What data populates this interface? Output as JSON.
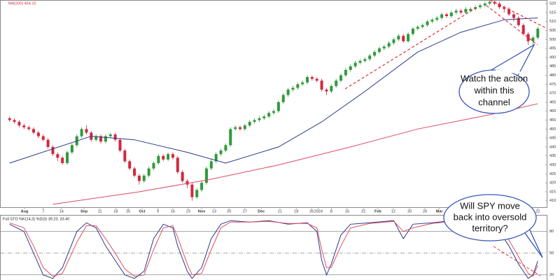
{
  "chart_data": [
    {
      "type": "candlestick",
      "overlay_label": "MA(200) 464.10",
      "x": [
        0,
        1,
        2,
        3,
        4,
        5,
        6,
        7,
        8,
        9,
        10,
        11,
        12,
        13,
        14,
        15,
        16,
        17,
        18,
        19,
        20,
        21,
        22,
        23,
        24,
        25,
        26,
        27,
        28,
        29,
        30,
        31,
        32,
        33,
        34,
        35,
        36,
        37,
        38,
        39,
        40,
        41,
        42,
        43,
        44,
        45,
        46,
        47,
        48,
        49,
        50,
        51,
        52,
        53,
        54,
        55,
        56,
        57,
        58,
        59,
        60,
        61,
        62,
        63,
        64,
        65,
        66,
        67,
        68,
        69,
        70,
        71,
        72,
        73,
        74,
        75,
        76,
        77,
        78,
        79,
        80,
        81,
        82,
        83,
        84,
        85,
        86,
        87,
        88,
        89,
        90,
        91,
        92,
        93,
        94,
        95,
        96,
        97,
        98,
        99,
        100,
        101,
        102,
        103,
        104,
        105,
        106,
        107,
        108,
        109,
        110
      ],
      "open": [
        456,
        455,
        454,
        452,
        451,
        450,
        448,
        446,
        444,
        440,
        436,
        434,
        431,
        437,
        441,
        446,
        450,
        448,
        444,
        446,
        443,
        446,
        447,
        444,
        438,
        432,
        428,
        424,
        421,
        424,
        428,
        431,
        435,
        433,
        436,
        434,
        426,
        421,
        419,
        412,
        416,
        420,
        428,
        432,
        436,
        438,
        441,
        450,
        451,
        450,
        452,
        454,
        455,
        456,
        457,
        459,
        460,
        465,
        469,
        472,
        473,
        475,
        476,
        479,
        478,
        477,
        472,
        471,
        474,
        477,
        480,
        483,
        485,
        487,
        488,
        489,
        491,
        493,
        495,
        496,
        498,
        500,
        502,
        499,
        503,
        506,
        507,
        508,
        510,
        511,
        512,
        514,
        513,
        515,
        516,
        515,
        516,
        517,
        518,
        519,
        520,
        521,
        520,
        518,
        517,
        514,
        512,
        508,
        503,
        499,
        501
      ],
      "high": [
        457,
        456,
        455,
        453,
        452,
        451,
        449,
        447,
        445,
        441,
        437,
        435,
        438,
        442,
        447,
        451,
        452,
        449,
        447,
        447,
        447,
        448,
        448,
        445,
        439,
        433,
        429,
        425,
        425,
        429,
        432,
        436,
        436,
        437,
        437,
        435,
        427,
        422,
        420,
        417,
        421,
        429,
        433,
        437,
        439,
        442,
        451,
        452,
        452,
        453,
        455,
        456,
        457,
        458,
        460,
        461,
        466,
        470,
        473,
        474,
        476,
        477,
        480,
        480,
        479,
        478,
        473,
        475,
        478,
        481,
        484,
        486,
        488,
        489,
        490,
        492,
        494,
        496,
        497,
        499,
        501,
        503,
        503,
        504,
        507,
        508,
        509,
        511,
        512,
        513,
        515,
        515,
        516,
        517,
        517,
        518,
        518,
        519,
        520,
        521,
        522,
        522,
        521,
        519,
        518,
        515,
        513,
        509,
        504,
        502,
        507
      ],
      "low": [
        454,
        453,
        451,
        450,
        449,
        447,
        445,
        443,
        439,
        435,
        432,
        430,
        430,
        436,
        440,
        445,
        447,
        443,
        443,
        442,
        442,
        445,
        443,
        437,
        431,
        427,
        423,
        419,
        420,
        423,
        427,
        430,
        432,
        432,
        433,
        425,
        420,
        417,
        410,
        411,
        415,
        419,
        427,
        431,
        435,
        437,
        440,
        449,
        449,
        449,
        451,
        453,
        454,
        455,
        456,
        458,
        459,
        464,
        468,
        471,
        472,
        474,
        475,
        477,
        476,
        471,
        469,
        470,
        473,
        476,
        479,
        482,
        484,
        486,
        487,
        488,
        490,
        492,
        494,
        495,
        497,
        499,
        498,
        498,
        502,
        505,
        506,
        507,
        509,
        510,
        511,
        512,
        512,
        514,
        514,
        514,
        515,
        516,
        517,
        518,
        519,
        519,
        517,
        515,
        513,
        510,
        507,
        502,
        497,
        497,
        500
      ],
      "close": [
        455,
        454,
        452,
        451,
        450,
        448,
        446,
        444,
        440,
        436,
        434,
        431,
        437,
        441,
        446,
        450,
        448,
        444,
        446,
        443,
        446,
        447,
        444,
        438,
        432,
        428,
        424,
        421,
        424,
        428,
        431,
        435,
        433,
        436,
        434,
        426,
        421,
        419,
        412,
        416,
        420,
        428,
        432,
        436,
        438,
        441,
        450,
        451,
        450,
        452,
        454,
        455,
        456,
        457,
        459,
        460,
        465,
        469,
        472,
        473,
        475,
        476,
        479,
        478,
        477,
        472,
        471,
        474,
        477,
        480,
        483,
        485,
        487,
        488,
        489,
        491,
        493,
        495,
        496,
        498,
        500,
        502,
        499,
        503,
        506,
        507,
        508,
        510,
        511,
        512,
        514,
        513,
        515,
        516,
        515,
        517,
        517,
        518,
        519,
        520,
        521,
        520,
        518,
        517,
        514,
        512,
        508,
        503,
        499,
        501,
        506
      ],
      "up_color": "#2f9a3c",
      "down_color": "#d2283e",
      "overlays": [
        {
          "color": "#2b3a8c",
          "x": [
            0,
            17,
            26,
            37,
            45,
            56,
            65,
            74,
            85,
            94,
            103,
            110
          ],
          "values": [
            431,
            446,
            444,
            437,
            431,
            440,
            454,
            471,
            493,
            504,
            511,
            512
          ]
        },
        {
          "color": "#dc4a64",
          "x": [
            9,
            27,
            42,
            56,
            71,
            85,
            100,
            110
          ],
          "values": [
            408,
            415,
            422,
            430,
            440,
            450,
            458,
            464.1
          ]
        }
      ],
      "xlim": [
        -2,
        112
      ],
      "ylim": [
        406,
        522
      ],
      "yticks": [
        410,
        415,
        420,
        425,
        430,
        435,
        440,
        445,
        450,
        455,
        460,
        465,
        470,
        475,
        480,
        485,
        490,
        495,
        500,
        505,
        510,
        515,
        520
      ],
      "xticks": [
        {
          "value": 3.1,
          "label": "Aug"
        },
        {
          "value": 7.0,
          "label": "7"
        },
        {
          "value": 10.8,
          "label": "14"
        },
        {
          "value": 15.5,
          "label": "Sep"
        },
        {
          "value": 18.8,
          "label": "11"
        },
        {
          "value": 22.1,
          "label": "18"
        },
        {
          "value": 24.7,
          "label": "25"
        },
        {
          "value": 27.6,
          "label": "Oct"
        },
        {
          "value": 30.9,
          "label": "9"
        },
        {
          "value": 34.0,
          "label": "16"
        },
        {
          "value": 37.2,
          "label": "23"
        },
        {
          "value": 40.0,
          "label": "Nov"
        },
        {
          "value": 42.6,
          "label": "13"
        },
        {
          "value": 45.7,
          "label": "20"
        },
        {
          "value": 49.0,
          "label": "27"
        },
        {
          "value": 52.4,
          "label": "Dec"
        },
        {
          "value": 56.3,
          "label": "11"
        },
        {
          "value": 59.7,
          "label": "18"
        },
        {
          "value": 62.9,
          "label": "26"
        },
        {
          "value": 64.3,
          "label": "2024"
        },
        {
          "value": 67.0,
          "label": "8"
        },
        {
          "value": 70.3,
          "label": "16"
        },
        {
          "value": 73.7,
          "label": "22"
        },
        {
          "value": 76.7,
          "label": "Feb"
        },
        {
          "value": 79.9,
          "label": "12"
        },
        {
          "value": 83.3,
          "label": "20"
        },
        {
          "value": 86.5,
          "label": "26"
        },
        {
          "value": 89.5,
          "label": "Mar"
        },
        {
          "value": 92.8,
          "label": "11"
        },
        {
          "value": 96.0,
          "label": "18"
        },
        {
          "value": 99.2,
          "label": "25"
        },
        {
          "value": 101.8,
          "label": "Apr"
        },
        {
          "value": 104.4,
          "label": "8"
        },
        {
          "value": 107.0,
          "label": "15"
        },
        {
          "value": 110.0,
          "label": "22"
        }
      ]
    },
    {
      "type": "line",
      "title": "Full STO %K(14,3) %D(3) 39.23, 33.40",
      "x": [
        0,
        3,
        5,
        7,
        9,
        11,
        14,
        16,
        18,
        20,
        22,
        24,
        26,
        28,
        30,
        32,
        34,
        35,
        37,
        38,
        40,
        42,
        44,
        46,
        50,
        54,
        58,
        62,
        64,
        65,
        66,
        67,
        69,
        71,
        75,
        80,
        82,
        84,
        88,
        92,
        96,
        100,
        102,
        104,
        106,
        108,
        109,
        110
      ],
      "series": [
        {
          "color": "#2b3a8c",
          "values": [
            90,
            80,
            50,
            20,
            15,
            30,
            80,
            92,
            85,
            60,
            40,
            20,
            15,
            25,
            70,
            90,
            85,
            60,
            25,
            15,
            30,
            70,
            90,
            95,
            93,
            95,
            90,
            92,
            80,
            40,
            20,
            35,
            75,
            90,
            92,
            95,
            70,
            90,
            92,
            95,
            93,
            95,
            80,
            60,
            35,
            15,
            20,
            39.23
          ]
        },
        {
          "color": "#e0505f",
          "values": [
            92,
            85,
            60,
            30,
            18,
            22,
            65,
            88,
            88,
            70,
            50,
            28,
            18,
            20,
            55,
            85,
            88,
            72,
            35,
            20,
            22,
            55,
            85,
            93,
            93,
            94,
            91,
            91,
            85,
            55,
            30,
            30,
            60,
            85,
            91,
            94,
            80,
            85,
            91,
            94,
            94,
            94,
            85,
            68,
            45,
            22,
            18,
            33.4
          ]
        }
      ],
      "xlim": [
        -2,
        112
      ],
      "ylim": [
        13.5,
        100
      ],
      "yticks": [
        20,
        50,
        80
      ]
    }
  ],
  "annotations": [
    [
      "Watch the action",
      "within this",
      "channel"
    ],
    [
      "Will SPY move",
      "back into oversold",
      "territory?"
    ]
  ]
}
